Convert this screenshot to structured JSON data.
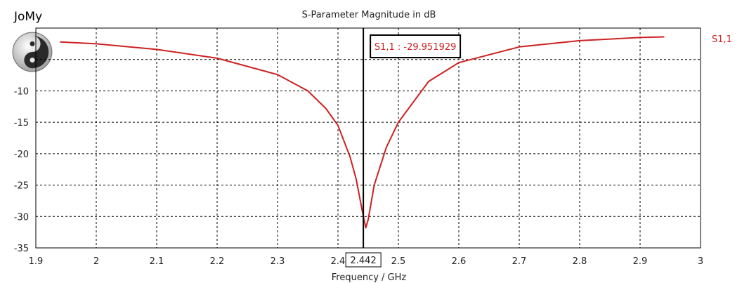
{
  "brand": {
    "name": "JoMy",
    "logo_icon": "yin-yang-icon"
  },
  "chart_data": {
    "type": "line",
    "title": "S-Parameter Magnitude in dB",
    "xlabel": "Frequency / GHz",
    "ylabel": "",
    "xlim": [
      1.9,
      3.0
    ],
    "ylim": [
      -35,
      0
    ],
    "x_ticks": [
      "1.9",
      "2",
      "2.1",
      "2.2",
      "2.3",
      "2.4",
      "2.5",
      "2.6",
      "2.7",
      "2.8",
      "2.9",
      "3"
    ],
    "y_ticks": [
      "-10",
      "-15",
      "-20",
      "-25",
      "-30",
      "-35"
    ],
    "grid": true,
    "legend": {
      "position": "top-right",
      "entries": [
        "S1,1"
      ]
    },
    "series": [
      {
        "name": "S1,1",
        "color": "#cc2222",
        "x": [
          1.94,
          2.0,
          2.1,
          2.2,
          2.3,
          2.35,
          2.38,
          2.4,
          2.42,
          2.43,
          2.44,
          2.446,
          2.45,
          2.46,
          2.48,
          2.5,
          2.55,
          2.6,
          2.7,
          2.8,
          2.9,
          2.94
        ],
        "y": [
          -2.2,
          -2.5,
          -3.4,
          -4.8,
          -7.4,
          -10.0,
          -12.8,
          -15.5,
          -20.5,
          -24.0,
          -29.0,
          -31.8,
          -30.5,
          -25.0,
          -19.0,
          -15.0,
          -8.5,
          -5.5,
          -3.0,
          -2.0,
          -1.5,
          -1.4
        ]
      }
    ],
    "marker": {
      "x": 2.442,
      "x_label": "2.442",
      "readout": "S1,1 : -29.951929"
    }
  }
}
